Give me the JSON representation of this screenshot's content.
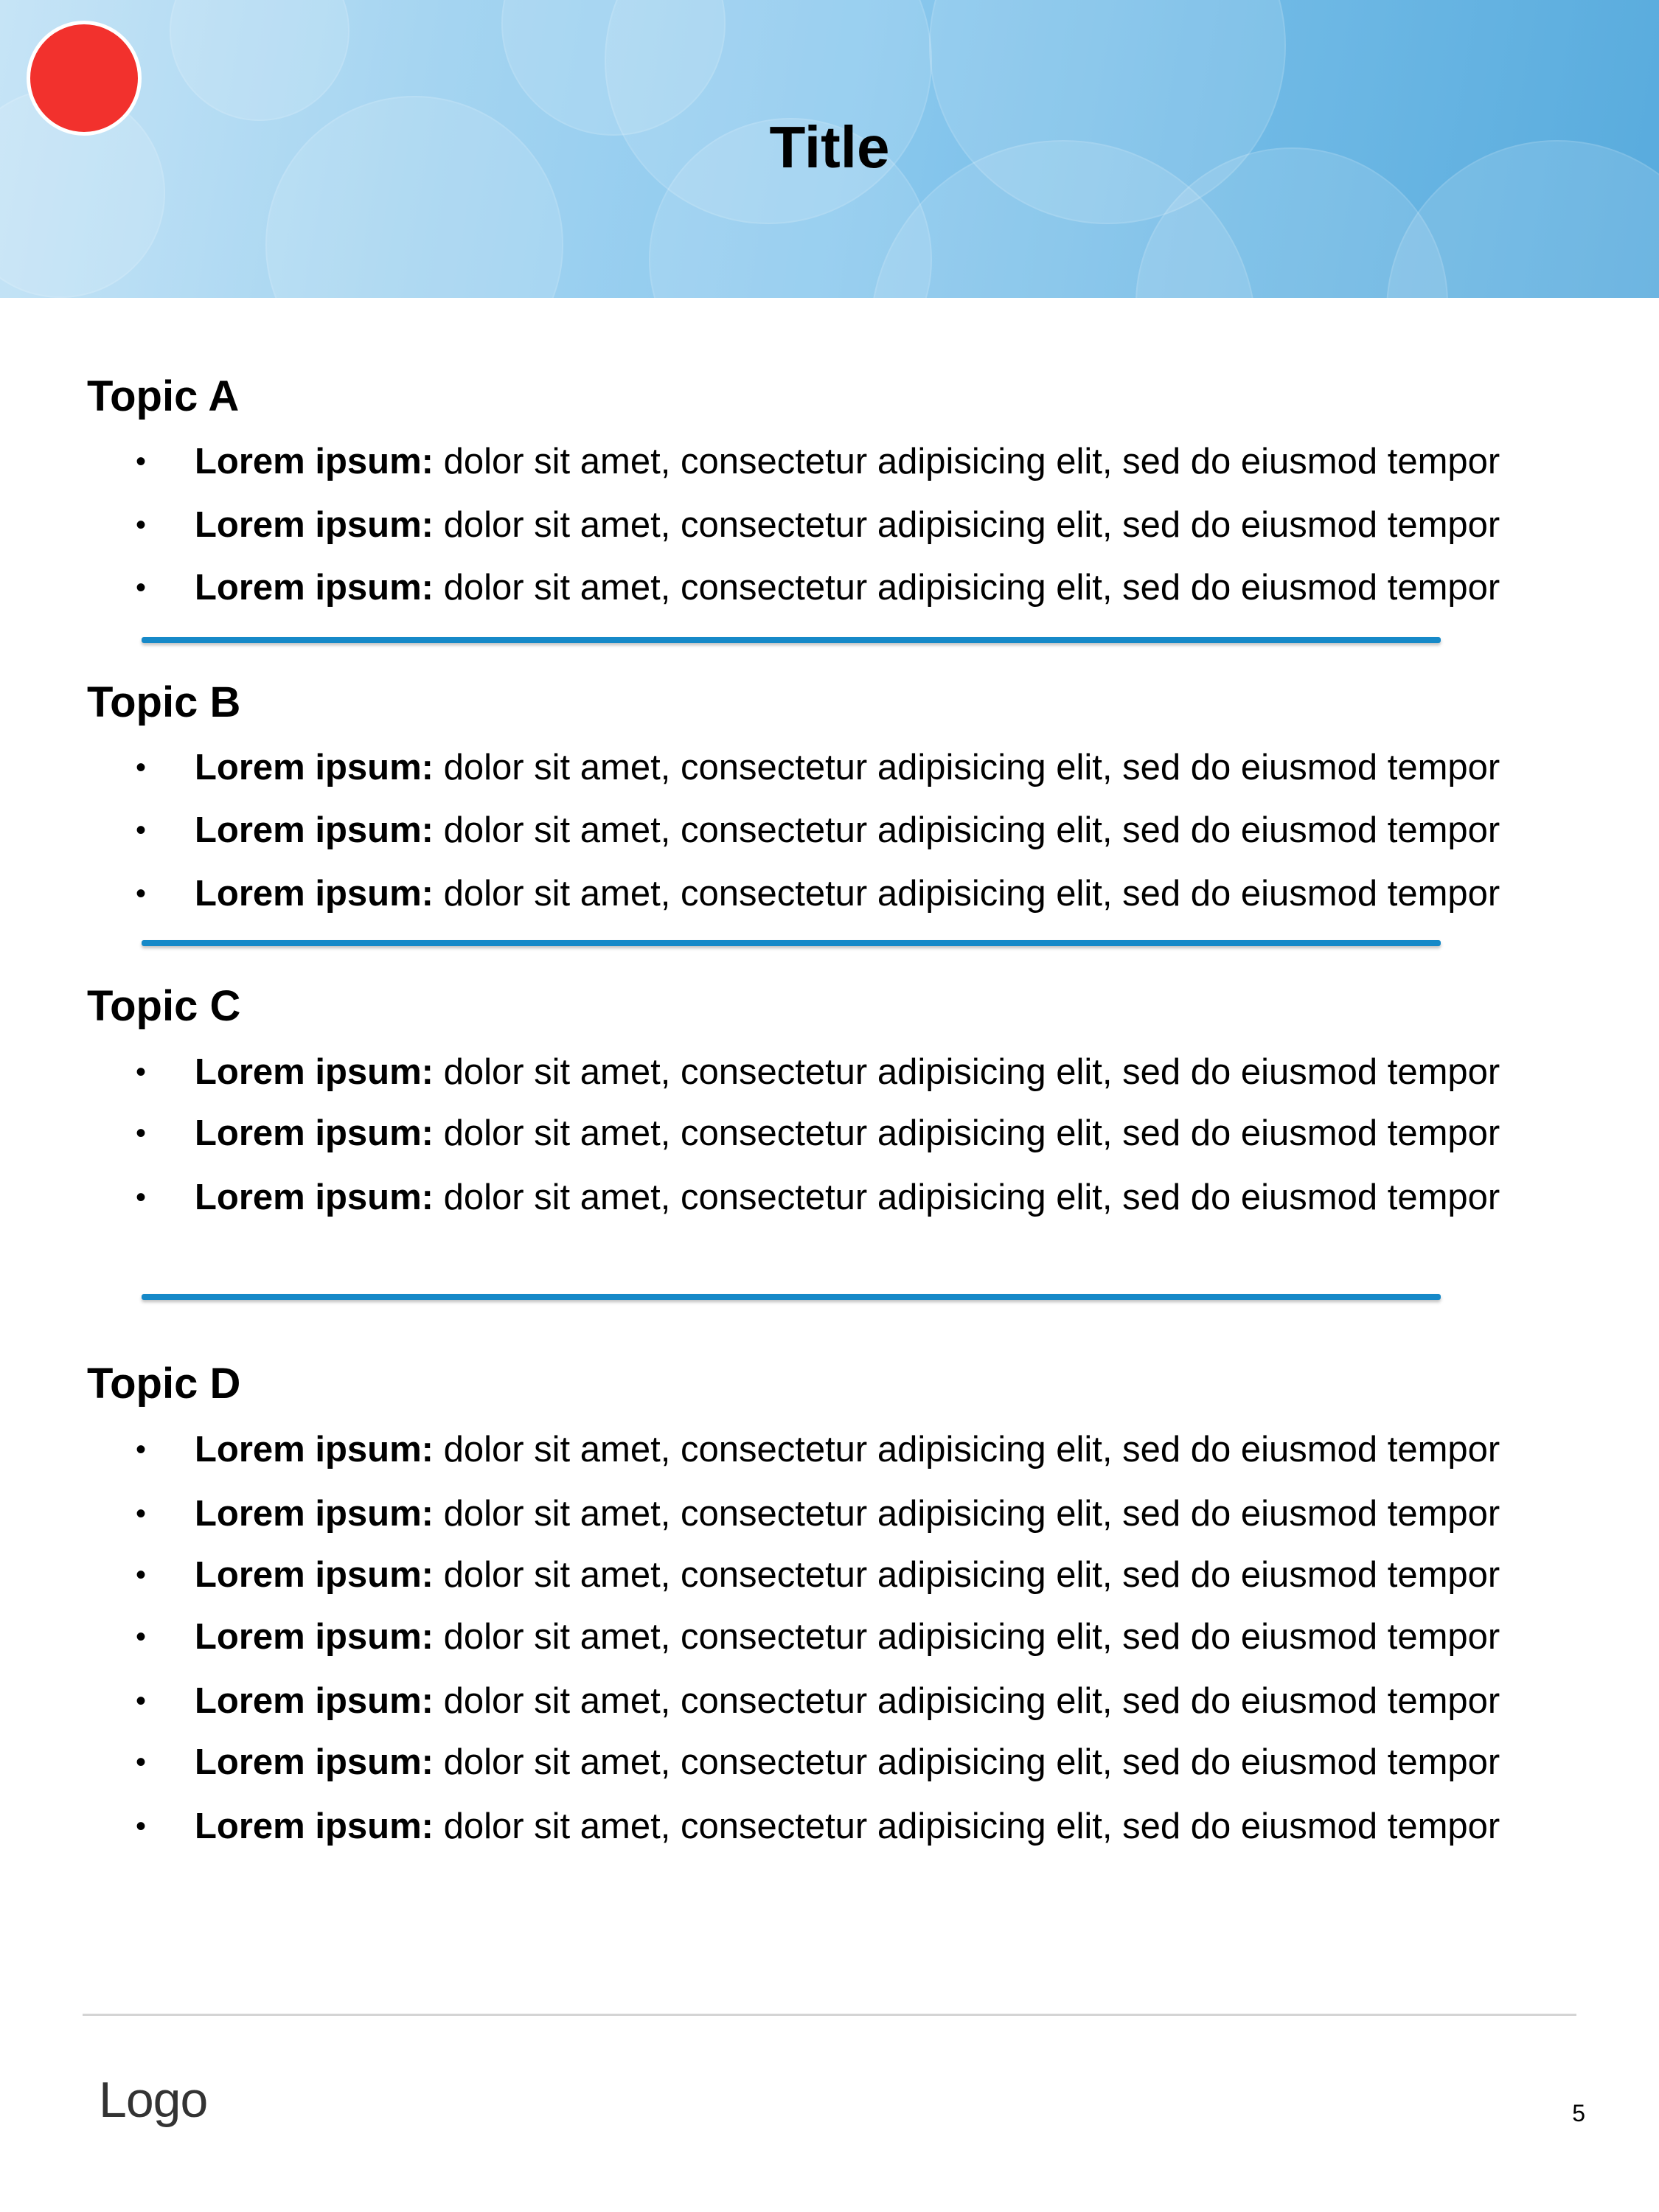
{
  "header": {
    "title": "Title"
  },
  "topics": [
    {
      "heading": "Topic A",
      "bullets": [
        {
          "bold": "Lorem ipsum:",
          "text": " dolor sit amet, consectetur adipisicing elit, sed do eiusmod tempor"
        },
        {
          "bold": "Lorem ipsum:",
          "text": " dolor sit amet, consectetur adipisicing elit, sed do eiusmod tempor"
        },
        {
          "bold": "Lorem ipsum:",
          "text": " dolor sit amet, consectetur adipisicing elit, sed do eiusmod tempor"
        }
      ]
    },
    {
      "heading": "Topic B",
      "bullets": [
        {
          "bold": "Lorem ipsum:",
          "text": " dolor sit amet, consectetur adipisicing elit, sed do eiusmod tempor"
        },
        {
          "bold": "Lorem ipsum:",
          "text": " dolor sit amet, consectetur adipisicing elit, sed do eiusmod tempor"
        },
        {
          "bold": "Lorem ipsum:",
          "text": " dolor sit amet, consectetur adipisicing elit, sed do eiusmod tempor"
        }
      ]
    },
    {
      "heading": "Topic C",
      "bullets": [
        {
          "bold": "Lorem ipsum:",
          "text": " dolor sit amet, consectetur adipisicing elit, sed do eiusmod tempor"
        },
        {
          "bold": "Lorem ipsum:",
          "text": " dolor sit amet, consectetur adipisicing elit, sed do eiusmod tempor"
        },
        {
          "bold": "Lorem ipsum:",
          "text": " dolor sit amet, consectetur adipisicing elit, sed do eiusmod tempor"
        }
      ]
    },
    {
      "heading": "Topic D",
      "bullets": [
        {
          "bold": "Lorem ipsum:",
          "text": " dolor sit amet, consectetur adipisicing elit, sed do eiusmod tempor"
        },
        {
          "bold": "Lorem ipsum:",
          "text": " dolor sit amet, consectetur adipisicing elit, sed do eiusmod tempor"
        },
        {
          "bold": "Lorem ipsum:",
          "text": " dolor sit amet, consectetur adipisicing elit, sed do eiusmod tempor"
        },
        {
          "bold": "Lorem ipsum:",
          "text": " dolor sit amet, consectetur adipisicing elit, sed do eiusmod tempor"
        },
        {
          "bold": "Lorem ipsum:",
          "text": " dolor sit amet, consectetur adipisicing elit, sed do eiusmod tempor"
        },
        {
          "bold": "Lorem ipsum:",
          "text": " dolor sit amet, consectetur adipisicing elit, sed do eiusmod tempor"
        },
        {
          "bold": "Lorem ipsum:",
          "text": " dolor sit amet, consectetur adipisicing elit, sed do eiusmod tempor"
        }
      ]
    }
  ],
  "footer": {
    "logo": "Logo",
    "page_number": "5"
  },
  "colors": {
    "accent_divider": "#1689c8",
    "header_gradient_start": "#c6e4f6",
    "header_gradient_end": "#58abdd",
    "red_dot": "#f2312d"
  }
}
